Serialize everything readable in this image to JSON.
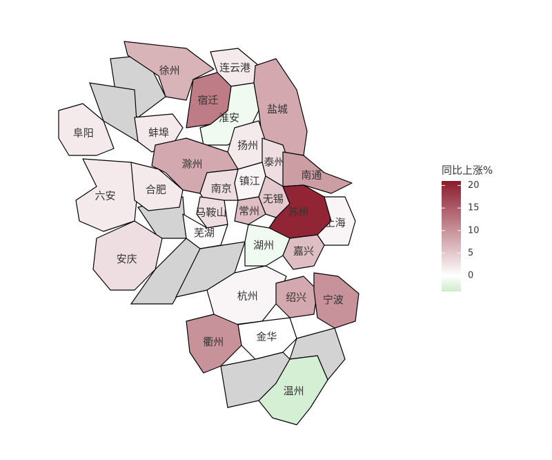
{
  "chart_data": {
    "type": "choropleth",
    "legend_title": "同比上涨%",
    "categories": [
      "徐州",
      "连云港",
      "宿迁",
      "淮安",
      "盐城",
      "阜阳",
      "蚌埠",
      "扬州",
      "泰州",
      "滁州",
      "南通",
      "六安",
      "合肥",
      "南京",
      "镇江",
      "马鞍山",
      "常州",
      "无锡",
      "苏州",
      "上海",
      "芜湖",
      "湖州",
      "嘉兴",
      "安庆",
      "杭州",
      "绍兴",
      "宁波",
      "衢州",
      "金华",
      "温州"
    ],
    "values": [
      7,
      2,
      12,
      -1,
      8,
      2,
      2,
      2,
      3,
      8,
      9,
      2,
      2,
      3,
      1,
      3,
      6,
      5,
      20,
      1,
      0.5,
      -1,
      6,
      3,
      1,
      8,
      10,
      10,
      0,
      -3
    ],
    "colors": {
      "low": "#cdeccd",
      "mid": "#ffffff",
      "high": "#8b1a2b"
    },
    "clim": [
      -3.5,
      21
    ],
    "cticks": [
      0,
      5,
      10,
      15,
      20
    ],
    "no_data_color": "#d3d3d3"
  }
}
